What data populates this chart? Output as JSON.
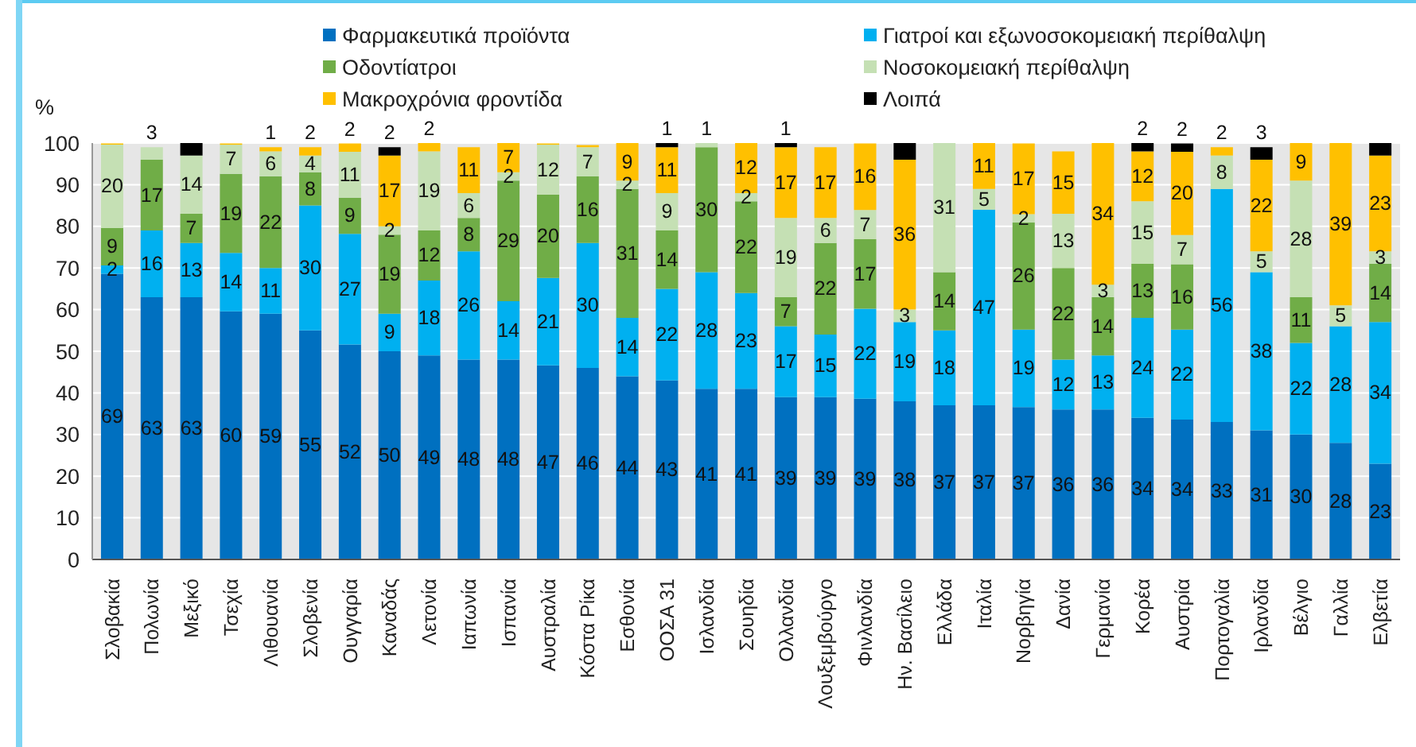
{
  "chart_data": {
    "type": "bar",
    "stacked": true,
    "ylabel": "%",
    "legend": "top",
    "grid": "y",
    "ylim": [
      0,
      100
    ],
    "yticks": [
      0,
      10,
      20,
      30,
      40,
      50,
      60,
      70,
      80,
      90,
      100
    ],
    "categories": [
      "Σλοβακία",
      "Πολωνία",
      "Μεξικό",
      "Τσεχία",
      "Λιθουανία",
      "Σλοβενία",
      "Ουγγαρία",
      "Καναδάς",
      "Λετονία",
      "Ιαπωνία",
      "Ισπανία",
      "Αυστραλία",
      "Κόστα Ρίκα",
      "Εσθονία",
      "ΟΟΣΑ 31",
      "Ισλανδία",
      "Σουηδία",
      "Ολλανδία",
      "Λουξεμβούργο",
      "Φινλανδία",
      "Ην. Βασίλειο",
      "Ελλάδα",
      "Ιταλία",
      "Νορβηγία",
      "Δανία",
      "Γερμανία",
      "Κορέα",
      "Αυστρία",
      "Πορτογαλία",
      "Ιρλανδία",
      "Βέλγιο",
      "Γαλλία",
      "Ελβετία"
    ],
    "series": [
      {
        "name": "Φαρμακευτικά προϊόντα",
        "color": "#0070c0",
        "values": [
          68.6,
          63,
          63,
          59.6,
          59,
          55,
          51.6,
          50,
          49,
          48,
          48,
          46.6,
          46,
          44,
          43,
          41,
          41,
          39,
          39,
          38.6,
          38,
          37,
          37,
          36.6,
          36,
          36,
          34,
          33.6,
          33,
          31,
          30,
          28,
          23
        ],
        "value_labels": [
          "69",
          "63",
          "63",
          "60",
          "59",
          "55",
          "52",
          "50",
          "49",
          "48",
          "48",
          "47",
          "46",
          "44",
          "43",
          "41",
          "41",
          "39",
          "39",
          "39",
          "38",
          "37",
          "37",
          "37",
          "36",
          "36",
          "34",
          "34",
          "33",
          "31",
          "30",
          "28",
          "23"
        ]
      },
      {
        "name": "Γιατροί και εξωνοσοκομειακή περίθαλψη",
        "color": "#00b0f0",
        "values": [
          2,
          16,
          13,
          14,
          11,
          30,
          26.6,
          9,
          18,
          26,
          14,
          21,
          30,
          14,
          22,
          28,
          23,
          17,
          15,
          21.6,
          19,
          18,
          47,
          18.6,
          12,
          13,
          24,
          21.6,
          56,
          38,
          22,
          28,
          34
        ],
        "value_labels": [
          "2",
          "16",
          "13",
          "14",
          "11",
          "30",
          "27",
          "9",
          "18",
          "26",
          "14",
          "21",
          "30",
          "14",
          "22",
          "28",
          "23",
          "17",
          "15",
          "22",
          "19",
          "18",
          "47",
          "19",
          "12",
          "13",
          "24",
          "22",
          "56",
          "38",
          "22",
          "28",
          "34"
        ]
      },
      {
        "name": "Οδοντίατροι",
        "color": "#70ad47",
        "values": [
          9,
          17,
          7,
          19,
          22,
          8,
          8.7,
          19,
          12,
          8,
          29,
          20,
          16,
          31,
          14,
          30,
          22,
          7,
          22,
          16.7,
          null,
          14,
          null,
          25.7,
          22,
          14,
          13,
          15.7,
          null,
          null,
          11,
          null,
          14
        ],
        "value_labels": [
          "9",
          "17",
          "7",
          "19",
          "22",
          "8",
          "9",
          "19",
          "12",
          "8",
          "29",
          "20",
          "16",
          "31",
          "14",
          "30",
          "22",
          "7",
          "22",
          "17",
          null,
          "14",
          null,
          "26",
          "22",
          "14",
          "13",
          "16",
          null,
          null,
          "11",
          null,
          "14"
        ]
      },
      {
        "name": "Νοσοκομειακή περίθαλψη",
        "color": "#c5e0b4",
        "values": [
          20,
          3,
          14,
          7,
          6,
          4,
          11,
          2,
          19,
          6,
          2,
          12,
          7,
          2,
          9,
          1,
          2,
          19,
          6,
          7,
          3,
          31,
          5,
          2,
          13,
          3,
          15,
          7,
          8,
          5,
          28,
          5,
          3
        ],
        "value_labels": [
          "20",
          "3",
          "14",
          "7",
          "6",
          "4",
          "11",
          "2",
          "19",
          "6",
          "2",
          "12",
          "7",
          "2",
          "9",
          "1",
          "2",
          "19",
          "6",
          "7",
          "3",
          "31",
          "5",
          "2",
          "13",
          "3",
          "15",
          "7",
          "8",
          "5",
          "28",
          "5",
          "3"
        ]
      },
      {
        "name": "Μακροχρόνια φροντίδα",
        "color": "#ffc000",
        "values": [
          0.3,
          null,
          null,
          0.3,
          1,
          2,
          2,
          17,
          2,
          11,
          7,
          0.3,
          0.5,
          9,
          11,
          null,
          12,
          17,
          17,
          16,
          36,
          null,
          11,
          17,
          15,
          34,
          12,
          20,
          2,
          22,
          9,
          39,
          23
        ],
        "value_labels": [
          null,
          null,
          null,
          null,
          "1",
          "2",
          "2",
          "17",
          "2",
          "11",
          "7",
          null,
          null,
          "9",
          "11",
          null,
          "12",
          "17",
          "17",
          "16",
          "36",
          null,
          "11",
          "17",
          "15",
          "34",
          "12",
          "20",
          "2",
          "22",
          "9",
          "39",
          "23"
        ]
      },
      {
        "name": "Λοιπά",
        "color": "#000000",
        "values": [
          null,
          null,
          3,
          null,
          null,
          null,
          null,
          2,
          null,
          null,
          null,
          null,
          null,
          null,
          1,
          null,
          null,
          1,
          null,
          null,
          4,
          null,
          null,
          null,
          null,
          null,
          2,
          2,
          null,
          3,
          null,
          null,
          3
        ],
        "value_labels": [
          null,
          null,
          null,
          null,
          null,
          null,
          null,
          "2",
          null,
          null,
          null,
          null,
          null,
          null,
          "1",
          null,
          null,
          "1",
          null,
          null,
          null,
          null,
          null,
          null,
          null,
          null,
          "2",
          "2",
          null,
          "3",
          null,
          null,
          null
        ]
      }
    ]
  }
}
